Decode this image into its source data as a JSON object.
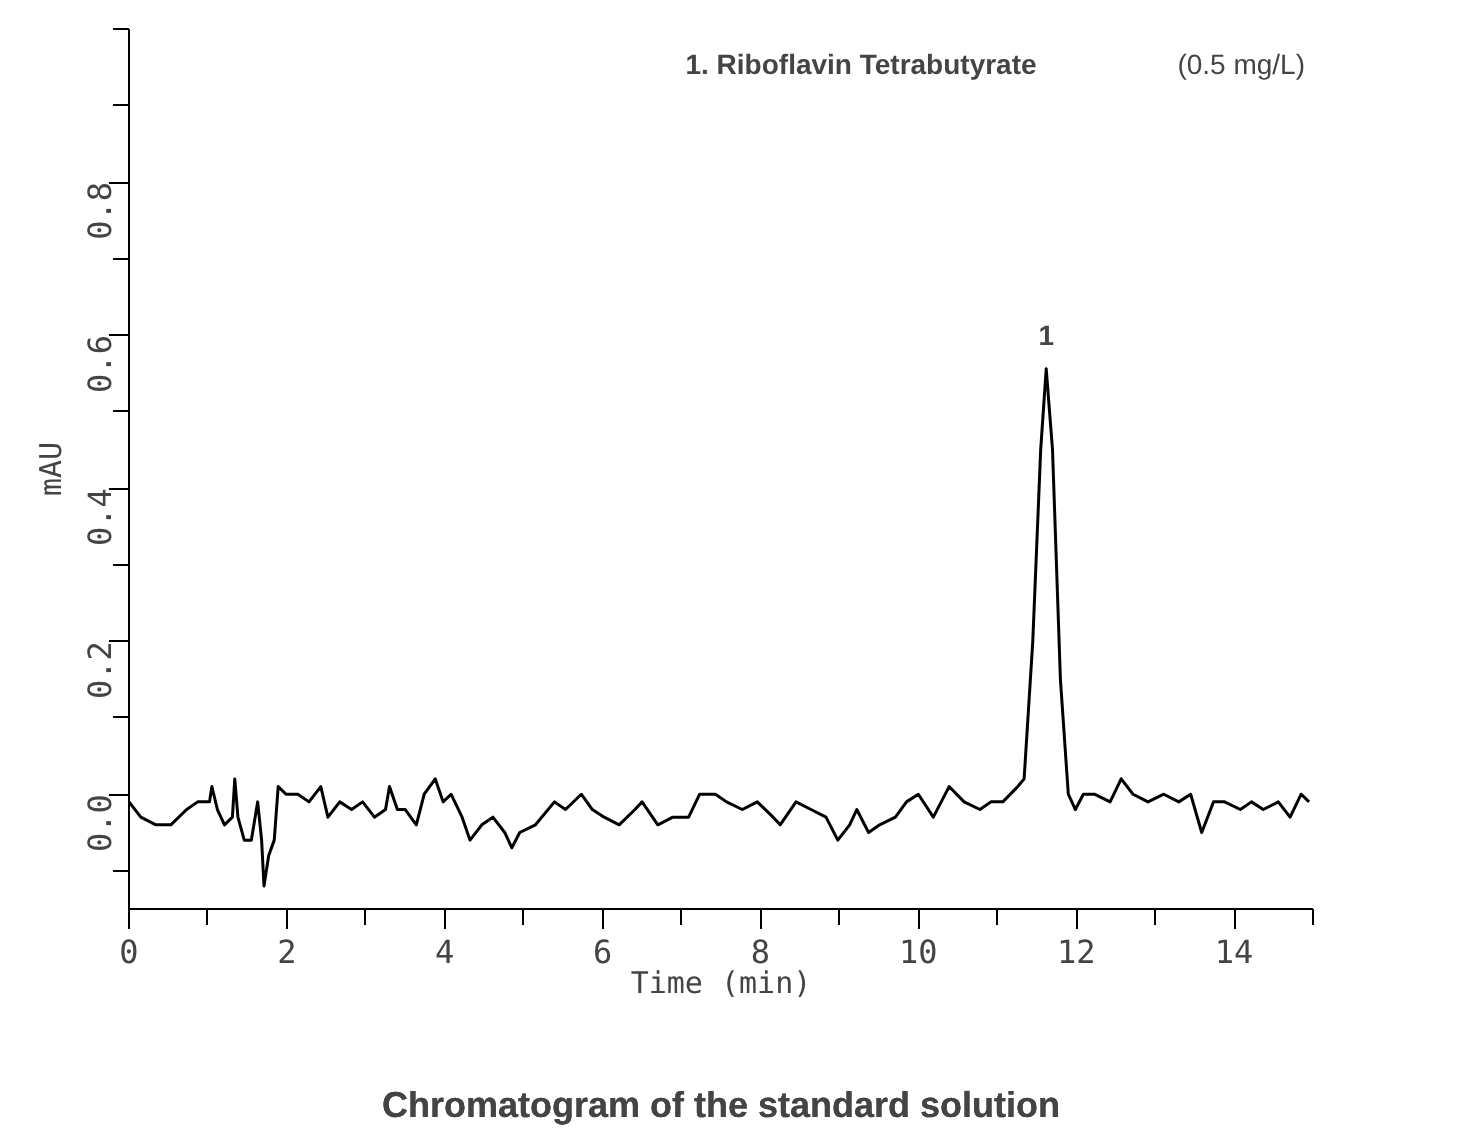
{
  "chart_data": {
    "type": "line",
    "title": "Chromatogram of the standard solution",
    "xlabel": "Time (min)",
    "ylabel": "mAU",
    "annotations": [
      "1. Riboflavin Tetrabutyrate",
      "(0.5 mg/L)",
      {
        "text": "1",
        "x": 11.62,
        "y": 0.556
      }
    ],
    "xlim": [
      0,
      15
    ],
    "ylim": [
      -0.15,
      1.0
    ],
    "xticks": [
      0,
      {
        "value": 1,
        "label": null
      },
      2,
      {
        "value": 3,
        "label": null
      },
      4,
      {
        "value": 5,
        "label": null
      },
      6,
      {
        "value": 7,
        "label": null
      },
      8,
      {
        "value": 9,
        "label": null
      },
      10,
      {
        "value": 11,
        "label": null
      },
      12,
      {
        "value": 13,
        "label": null
      },
      14,
      {
        "value": 15,
        "label": null
      }
    ],
    "yticks": [
      {
        "value": -0.1,
        "label": null
      },
      {
        "value": 0,
        "label": "0.0"
      },
      {
        "value": 0.1,
        "label": null
      },
      0.2,
      {
        "value": 0.3,
        "label": null
      },
      0.4,
      {
        "value": 0.5,
        "label": null
      },
      0.6,
      {
        "value": 0.7,
        "label": null
      },
      0.8,
      {
        "value": 0.9,
        "label": null
      },
      {
        "value": 1.0,
        "label": null
      }
    ],
    "grid": false,
    "marker": "none",
    "line_style": "solid",
    "series": [
      {
        "color": "#000000",
        "x": [
          0.0,
          0.15,
          0.34,
          0.53,
          0.73,
          0.87,
          1.02,
          1.05,
          1.12,
          1.21,
          1.31,
          1.34,
          1.38,
          1.46,
          1.55,
          1.63,
          1.68,
          1.71,
          1.77,
          1.84,
          1.89,
          1.99,
          2.14,
          2.28,
          2.43,
          2.52,
          2.67,
          2.82,
          2.96,
          3.11,
          3.25,
          3.3,
          3.4,
          3.5,
          3.64,
          3.74,
          3.88,
          3.98,
          4.08,
          4.22,
          4.32,
          4.47,
          4.61,
          4.76,
          4.85,
          4.95,
          5.15,
          5.39,
          5.53,
          5.73,
          5.87,
          6.02,
          6.21,
          6.41,
          6.5,
          6.7,
          6.89,
          7.09,
          7.23,
          7.43,
          7.57,
          7.77,
          7.96,
          8.16,
          8.25,
          8.45,
          8.64,
          8.83,
          8.98,
          9.13,
          9.22,
          9.37,
          9.51,
          9.71,
          9.85,
          10.0,
          10.19,
          10.39,
          10.58,
          10.78,
          10.92,
          11.07,
          11.26,
          11.34,
          11.45,
          11.55,
          11.62,
          11.7,
          11.8,
          11.9,
          11.99,
          12.09,
          12.23,
          12.43,
          12.57,
          12.72,
          12.91,
          13.11,
          13.3,
          13.45,
          13.59,
          13.74,
          13.88,
          14.08,
          14.22,
          14.37,
          14.56,
          14.71,
          14.85,
          14.95
        ],
        "values": [
          -0.01,
          -0.03,
          -0.04,
          -0.04,
          -0.02,
          -0.01,
          -0.01,
          0.01,
          -0.02,
          -0.04,
          -0.03,
          0.02,
          -0.03,
          -0.06,
          -0.06,
          -0.01,
          -0.06,
          -0.12,
          -0.08,
          -0.06,
          0.01,
          0.0,
          0.0,
          -0.01,
          0.01,
          -0.03,
          -0.01,
          -0.02,
          -0.01,
          -0.03,
          -0.02,
          0.01,
          -0.02,
          -0.02,
          -0.04,
          0.0,
          0.02,
          -0.01,
          0.0,
          -0.03,
          -0.06,
          -0.04,
          -0.03,
          -0.05,
          -0.07,
          -0.05,
          -0.04,
          -0.01,
          -0.02,
          0.0,
          -0.02,
          -0.03,
          -0.04,
          -0.02,
          -0.01,
          -0.04,
          -0.03,
          -0.03,
          0.0,
          0.0,
          -0.01,
          -0.02,
          -0.01,
          -0.03,
          -0.04,
          -0.01,
          -0.02,
          -0.03,
          -0.06,
          -0.04,
          -0.02,
          -0.05,
          -0.04,
          -0.03,
          -0.01,
          0.0,
          -0.03,
          0.01,
          -0.01,
          -0.02,
          -0.01,
          -0.01,
          0.01,
          0.02,
          0.2,
          0.45,
          0.556,
          0.45,
          0.15,
          0.0,
          -0.02,
          0.0,
          0.0,
          -0.01,
          0.02,
          0.0,
          -0.01,
          0.0,
          -0.01,
          0.0,
          -0.05,
          -0.01,
          -0.01,
          -0.02,
          -0.01,
          -0.02,
          -0.01,
          -0.03,
          0.0,
          -0.01
        ]
      }
    ]
  }
}
